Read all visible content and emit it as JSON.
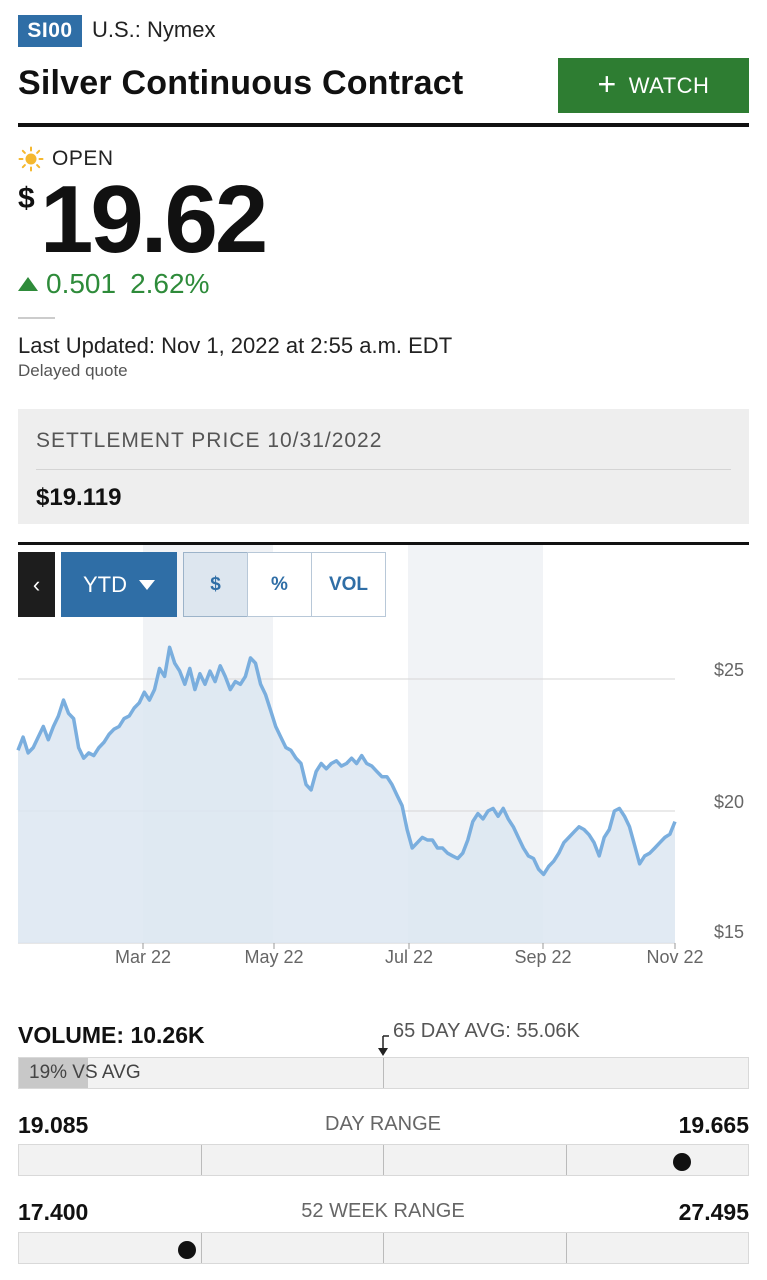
{
  "header": {
    "ticker": "SI00",
    "exchange": "U.S.: Nymex",
    "title": "Silver Continuous Contract",
    "watch_label": "WATCH"
  },
  "quote": {
    "status": "OPEN",
    "currency_symbol": "$",
    "price": "19.62",
    "change": "0.501",
    "change_percent": "2.62%",
    "last_updated": "Last Updated: Nov 1, 2022 at 2:55 a.m. EDT",
    "delayed_note": "Delayed quote"
  },
  "settlement": {
    "label": "SETTLEMENT PRICE 10/31/2022",
    "value": "$19.119"
  },
  "chart_toolbar": {
    "back_icon": "chevron-left-icon",
    "range_label": "YTD",
    "buttons": [
      "$",
      "%",
      "VOL"
    ],
    "active_button": "$"
  },
  "chart_data": {
    "type": "area",
    "x_labels": [
      "Mar 22",
      "May 22",
      "Jul 22",
      "Sep 22",
      "Nov 22"
    ],
    "y_ticks": [
      "$25",
      "$20",
      "$15"
    ],
    "ylim": [
      15,
      27
    ],
    "series": [
      {
        "values": [
          22.3,
          22.8,
          22.2,
          22.4,
          22.8,
          23.2,
          22.7,
          23.2,
          23.6,
          24.2,
          23.7,
          23.5,
          22.4,
          22.0,
          22.2,
          22.1,
          22.4,
          22.6,
          22.9,
          23.1,
          23.2,
          23.5,
          23.6,
          23.9,
          24.1,
          24.5,
          24.2,
          24.6,
          25.4,
          25.1,
          26.2,
          25.6,
          25.3,
          24.8,
          25.4,
          24.6,
          25.2,
          24.8,
          25.3,
          24.9,
          25.5,
          25.1,
          24.6,
          24.9,
          24.8,
          25.1,
          25.8,
          25.6,
          24.8,
          24.4,
          23.8,
          23.2,
          22.8,
          22.4,
          22.3,
          22.0,
          21.8,
          21.0,
          20.8,
          21.5,
          21.8,
          21.6,
          21.8,
          21.9,
          21.7,
          21.8,
          22.0,
          21.8,
          22.1,
          21.8,
          21.7,
          21.5,
          21.3,
          21.3,
          21.0,
          20.6,
          20.2,
          19.3,
          18.6,
          18.8,
          19.0,
          18.9,
          18.9,
          18.6,
          18.6,
          18.4,
          18.3,
          18.2,
          18.4,
          18.9,
          19.6,
          19.9,
          19.7,
          20.0,
          20.1,
          19.8,
          20.1,
          19.7,
          19.4,
          19.0,
          18.6,
          18.3,
          18.2,
          17.8,
          17.6,
          17.9,
          18.1,
          18.4,
          18.8,
          19.0,
          19.2,
          19.4,
          19.3,
          19.1,
          18.8,
          18.3,
          19.0,
          19.3,
          20.0,
          20.1,
          19.8,
          19.4,
          18.7,
          18.0,
          18.3,
          18.4,
          18.6,
          18.8,
          19.0,
          19.12,
          19.6
        ]
      }
    ],
    "grid": true,
    "shaded_month_bands": true
  },
  "volume": {
    "label": "VOLUME: 10.26K",
    "avg_label": "65 DAY AVG: 55.06K",
    "vs_avg_text": "19% VS AVG",
    "vs_avg_pct": 19
  },
  "day_range": {
    "low": "19.085",
    "label": "DAY RANGE",
    "high": "19.665",
    "position_pct": 91
  },
  "week52_range": {
    "low": "17.400",
    "label": "52 WEEK RANGE",
    "high": "27.495",
    "position_pct": 23
  }
}
